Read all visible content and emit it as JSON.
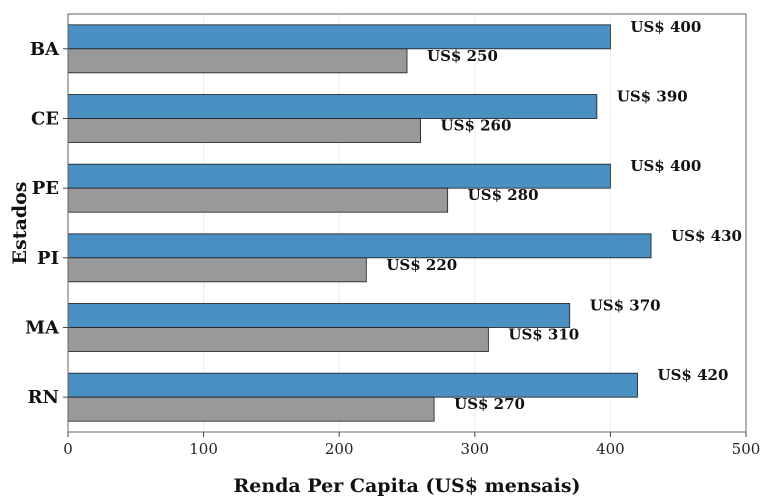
{
  "colors": {
    "series_primary": "#4a90c2",
    "series_secondary": "#999999",
    "bar_edge": "#1a1a1a",
    "grid": "#ebebeb"
  },
  "chart_data": {
    "type": "bar",
    "orientation": "horizontal",
    "categories": [
      "BA",
      "CE",
      "PE",
      "PI",
      "MA",
      "RN"
    ],
    "series": [
      {
        "values": [
          400,
          390,
          400,
          430,
          370,
          420
        ],
        "labels": [
          "US$ 400",
          "US$ 390",
          "US$ 400",
          "US$ 430",
          "US$ 370",
          "US$ 420"
        ]
      },
      {
        "values": [
          250,
          260,
          280,
          220,
          310,
          270
        ],
        "labels": [
          "US$ 250",
          "US$ 260",
          "US$ 280",
          "US$ 220",
          "US$ 310",
          "US$ 270"
        ]
      }
    ],
    "xlabel": "Renda Per Capita (US$ mensais)",
    "ylabel": "Estados",
    "xlim": [
      0,
      500
    ],
    "xticks": [
      "0",
      "100",
      "200",
      "300",
      "400",
      "500"
    ],
    "grid": "vertical, faint"
  }
}
